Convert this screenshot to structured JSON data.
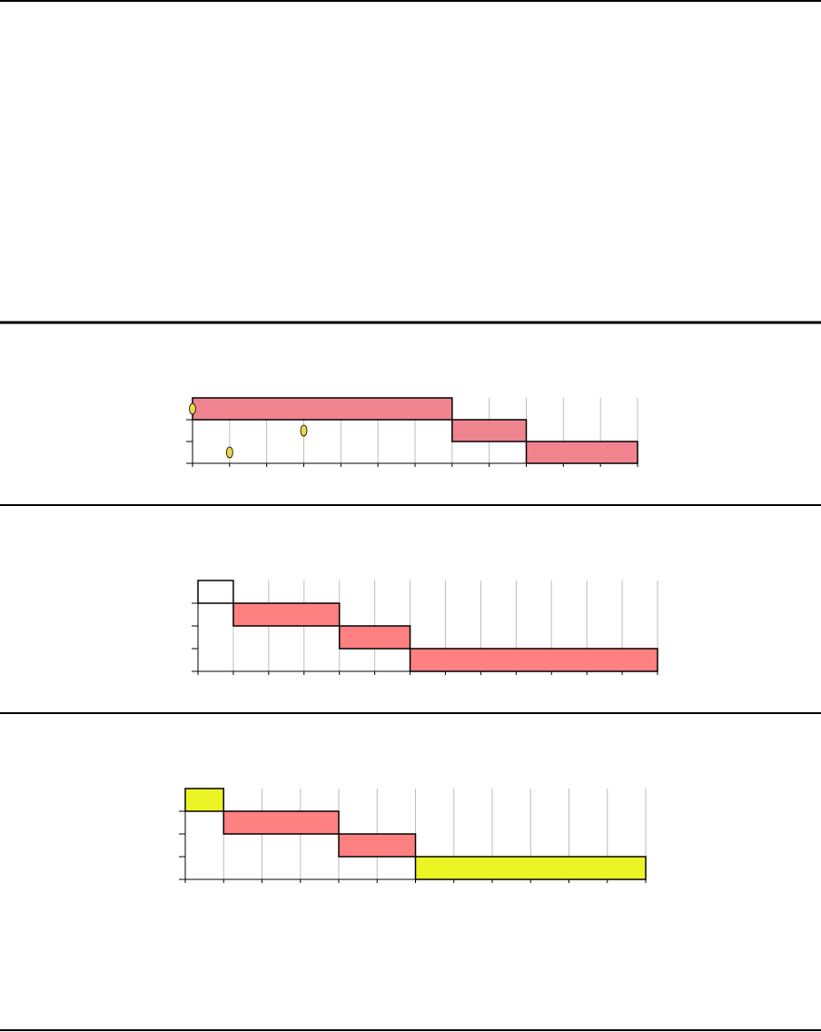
{
  "chart_data": [
    {
      "type": "gantt",
      "xlim": [
        0,
        12
      ],
      "xticks": [
        0,
        1,
        2,
        3,
        4,
        5,
        6,
        7,
        8,
        9,
        10,
        11,
        12
      ],
      "rows": 3,
      "grid": true,
      "tasks": [
        {
          "row": 0,
          "start": 0,
          "end": 7,
          "color": "#f0848e"
        },
        {
          "row": 1,
          "start": 7,
          "end": 9,
          "color": "#f0848e"
        },
        {
          "row": 2,
          "start": 9,
          "end": 12,
          "color": "#f0848e"
        }
      ],
      "markers": [
        {
          "row": 0,
          "x": 0,
          "color": "#e8d84c"
        },
        {
          "row": 1,
          "x": 3,
          "color": "#e8d84c"
        },
        {
          "row": 2,
          "x": 1,
          "color": "#e8d84c"
        }
      ]
    },
    {
      "type": "gantt",
      "xlim": [
        0,
        13
      ],
      "xticks": [
        0,
        1,
        2,
        3,
        4,
        5,
        6,
        7,
        8,
        9,
        10,
        11,
        12,
        13
      ],
      "rows": 4,
      "grid": true,
      "tasks": [
        {
          "row": 0,
          "start": 0,
          "end": 1,
          "color": "#ffffff"
        },
        {
          "row": 1,
          "start": 1,
          "end": 4,
          "color": "#ff8080"
        },
        {
          "row": 2,
          "start": 4,
          "end": 6,
          "color": "#ff8080"
        },
        {
          "row": 3,
          "start": 6,
          "end": 13,
          "color": "#ff8080"
        }
      ],
      "markers": []
    },
    {
      "type": "gantt",
      "xlim": [
        0,
        12
      ],
      "xticks": [
        0,
        1,
        2,
        3,
        4,
        5,
        6,
        7,
        8,
        9,
        10,
        11,
        12
      ],
      "rows": 4,
      "grid": true,
      "tasks": [
        {
          "row": 0,
          "start": 0,
          "end": 1,
          "color": "#ecf524"
        },
        {
          "row": 1,
          "start": 1,
          "end": 4,
          "color": "#ff8080"
        },
        {
          "row": 2,
          "start": 4,
          "end": 6,
          "color": "#ff8080"
        },
        {
          "row": 3,
          "start": 6,
          "end": 12,
          "color": "#ecf524"
        }
      ],
      "markers": []
    }
  ]
}
